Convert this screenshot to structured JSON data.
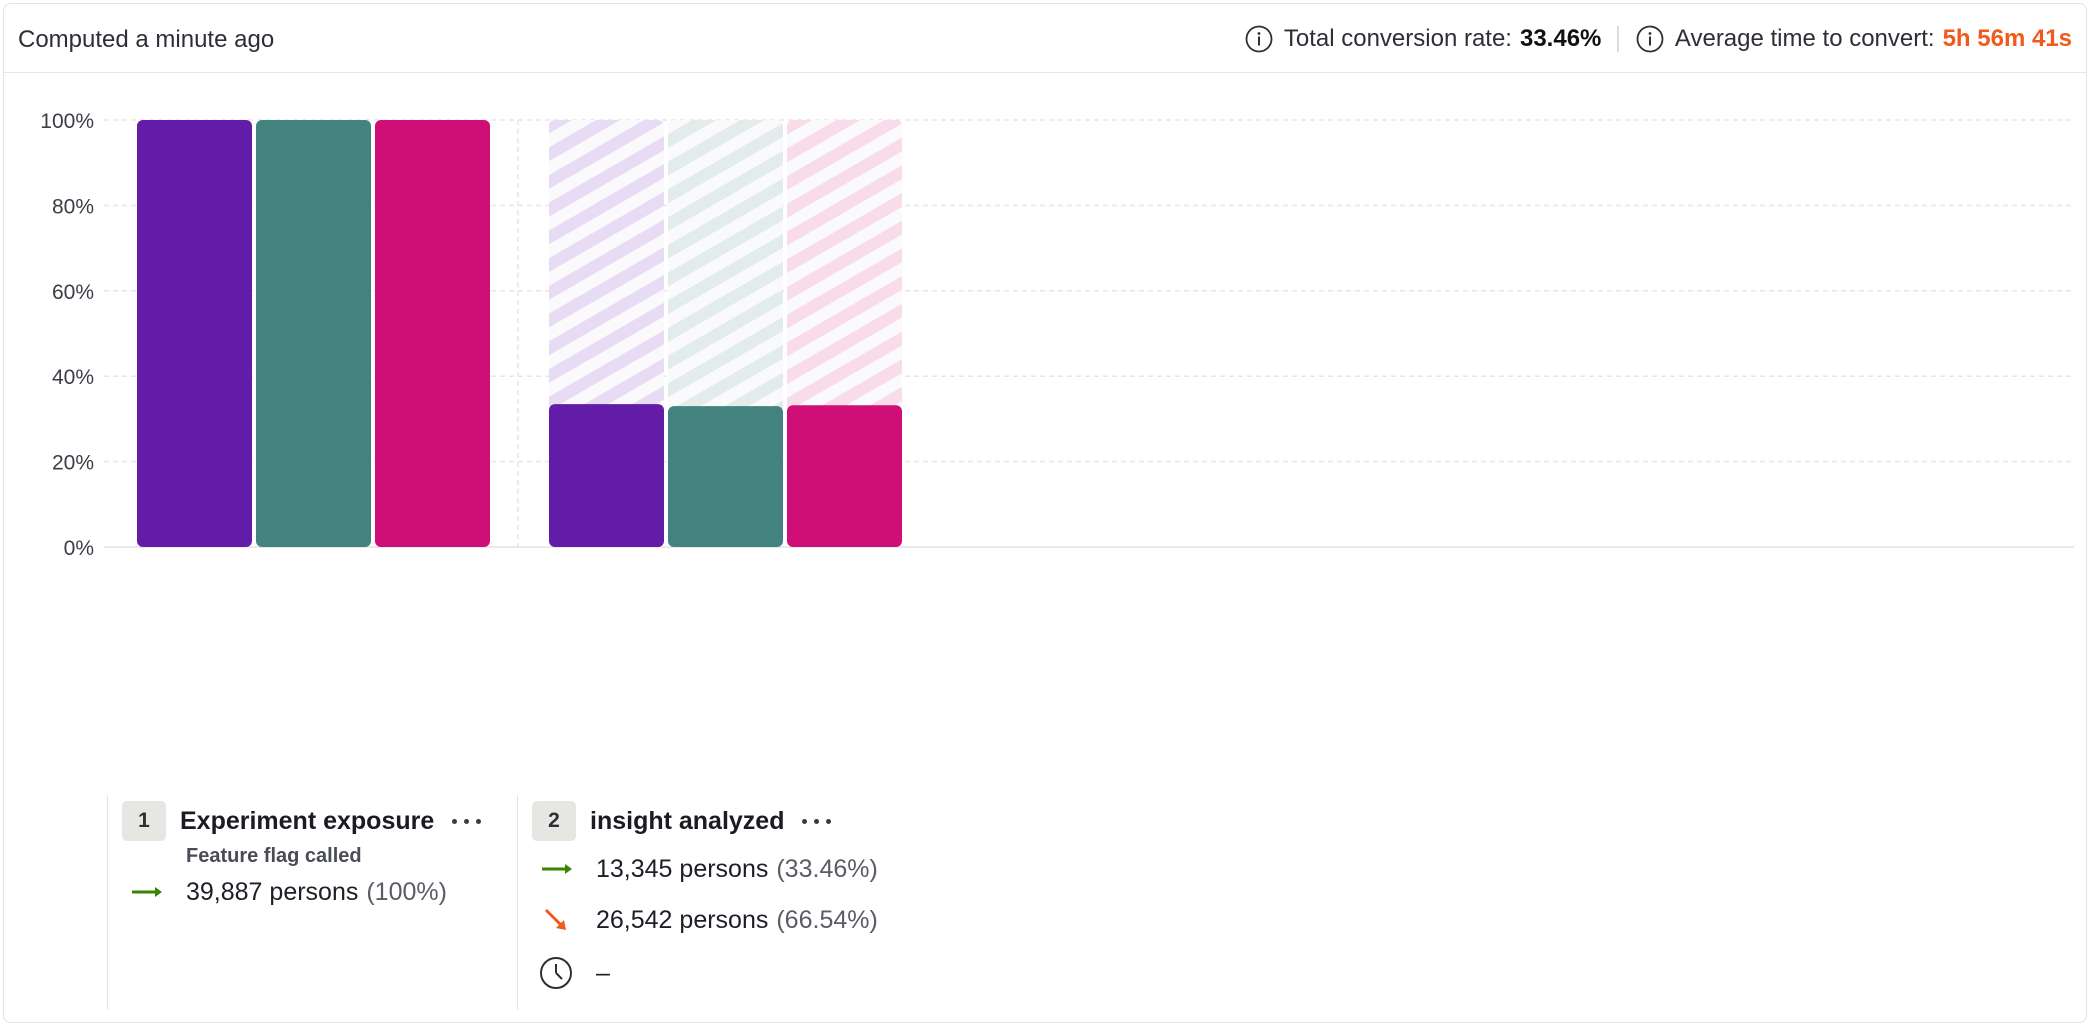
{
  "header": {
    "computed": "Computed a minute ago",
    "conversion_label": "Total conversion rate:",
    "conversion_value": "33.46%",
    "time_label": "Average time to convert:",
    "time_value": "5h 56m 41s",
    "icon": "info-icon"
  },
  "colors": {
    "series_a": "#631ca8",
    "series_b": "#43837f",
    "series_c": "#cf0f77",
    "warning": "#f05a1a",
    "success": "#388600"
  },
  "chart_data": {
    "type": "bar",
    "categories": [
      "1",
      "2"
    ],
    "series": [
      {
        "values": [
          100,
          33.46
        ],
        "color": "#631ca8",
        "faded": "#e7dcf4"
      },
      {
        "values": [
          100,
          33.0
        ],
        "color": "#43837f",
        "faded": "#e2ecea"
      },
      {
        "values": [
          100,
          33.2
        ],
        "color": "#cf0f77",
        "faded": "#f8dce9"
      }
    ],
    "ylim": [
      0,
      100
    ],
    "y_ticks": [
      "0%",
      "20%",
      "40%",
      "60%",
      "80%",
      "100%"
    ],
    "y_tick_values": [
      0,
      20,
      40,
      60,
      80,
      100
    ],
    "grid": true
  },
  "steps": [
    {
      "number": "1",
      "name": "Experiment exposure",
      "subtitle": "Feature flag called",
      "converted_text": "39,887 persons",
      "converted_pct": "(100%)"
    },
    {
      "number": "2",
      "name": "insight analyzed",
      "converted_text": "13,345 persons",
      "converted_pct": "(33.46%)",
      "dropped_text": "26,542 persons",
      "dropped_pct": "(66.54%)",
      "time_text": "–"
    }
  ]
}
